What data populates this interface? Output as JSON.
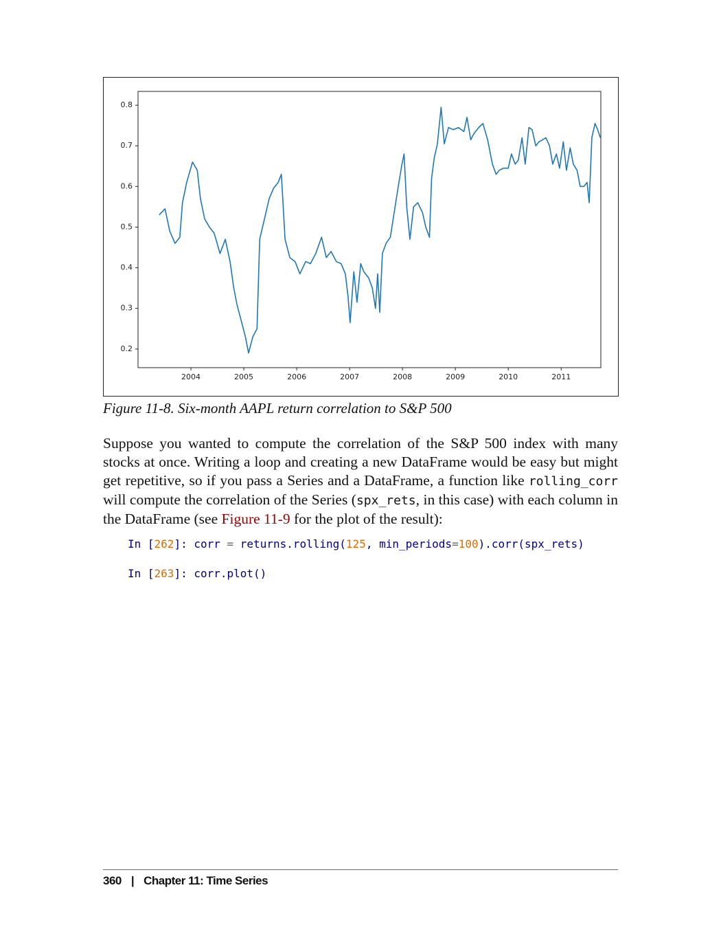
{
  "chart_data": {
    "type": "line",
    "color": "#1f77b4",
    "xlim": [
      2003.0,
      2011.75
    ],
    "ylim": [
      0.154,
      0.834
    ],
    "xticks": [
      2004,
      2005,
      2006,
      2007,
      2008,
      2009,
      2010,
      2011
    ],
    "yticks": [
      0.2,
      0.3,
      0.4,
      0.5,
      0.6,
      0.7,
      0.8
    ],
    "x": [
      2003.4,
      2003.51,
      2003.6,
      2003.7,
      2003.79,
      2003.84,
      2003.92,
      2004.03,
      2004.12,
      2004.18,
      2004.26,
      2004.35,
      2004.44,
      2004.55,
      2004.65,
      2004.74,
      2004.81,
      2004.87,
      2004.96,
      2005.03,
      2005.09,
      2005.17,
      2005.25,
      2005.3,
      2005.39,
      2005.48,
      2005.56,
      2005.65,
      2005.71,
      2005.78,
      2005.87,
      2005.97,
      2006.06,
      2006.17,
      2006.26,
      2006.36,
      2006.47,
      2006.56,
      2006.65,
      2006.75,
      2006.84,
      2006.92,
      2006.97,
      2007.01,
      2007.08,
      2007.14,
      2007.21,
      2007.27,
      2007.36,
      2007.43,
      2007.49,
      2007.53,
      2007.57,
      2007.62,
      2007.69,
      2007.77,
      2007.86,
      2007.92,
      2007.99,
      2008.03,
      2008.08,
      2008.14,
      2008.21,
      2008.29,
      2008.38,
      2008.44,
      2008.51,
      2008.55,
      2008.6,
      2008.66,
      2008.73,
      2008.79,
      2008.87,
      2008.96,
      2009.06,
      2009.16,
      2009.22,
      2009.29,
      2009.35,
      2009.44,
      2009.52,
      2009.61,
      2009.7,
      2009.77,
      2009.83,
      2009.91,
      2010.0,
      2010.06,
      2010.13,
      2010.19,
      2010.26,
      2010.32,
      2010.39,
      2010.45,
      2010.52,
      2010.58,
      2010.65,
      2010.71,
      2010.78,
      2010.84,
      2010.91,
      2010.97,
      2011.04,
      2011.1,
      2011.17,
      2011.23,
      2011.3,
      2011.36,
      2011.43,
      2011.49,
      2011.53,
      2011.58,
      2011.64,
      2011.69,
      2011.74
    ],
    "values": [
      0.53,
      0.545,
      0.49,
      0.46,
      0.475,
      0.56,
      0.61,
      0.66,
      0.64,
      0.57,
      0.52,
      0.5,
      0.485,
      0.435,
      0.47,
      0.415,
      0.35,
      0.31,
      0.265,
      0.23,
      0.19,
      0.23,
      0.25,
      0.47,
      0.52,
      0.57,
      0.595,
      0.61,
      0.63,
      0.47,
      0.425,
      0.415,
      0.385,
      0.415,
      0.41,
      0.435,
      0.475,
      0.425,
      0.44,
      0.415,
      0.41,
      0.385,
      0.33,
      0.265,
      0.39,
      0.315,
      0.41,
      0.39,
      0.375,
      0.35,
      0.3,
      0.385,
      0.29,
      0.435,
      0.46,
      0.475,
      0.55,
      0.6,
      0.655,
      0.68,
      0.55,
      0.47,
      0.55,
      0.56,
      0.535,
      0.5,
      0.475,
      0.62,
      0.67,
      0.705,
      0.795,
      0.705,
      0.745,
      0.74,
      0.745,
      0.735,
      0.77,
      0.715,
      0.73,
      0.745,
      0.755,
      0.715,
      0.655,
      0.63,
      0.64,
      0.645,
      0.645,
      0.68,
      0.655,
      0.665,
      0.72,
      0.655,
      0.745,
      0.74,
      0.7,
      0.71,
      0.715,
      0.72,
      0.7,
      0.655,
      0.68,
      0.645,
      0.71,
      0.64,
      0.695,
      0.655,
      0.64,
      0.6,
      0.6,
      0.61,
      0.56,
      0.72,
      0.755,
      0.74,
      0.72
    ]
  },
  "caption": "Figure 11-8. Six-month AAPL return correlation to S&P 500",
  "paragraph": [
    "Suppose you wanted to compute the correlation of the S&P 500 index with many stocks at once. Writing a loop and creating a new DataFrame would be easy but might get repetitive, so if you pass a Series and a DataFrame, a function like ",
    "rolling_corr",
    " will compute the correlation of the Series (",
    "spx_rets",
    ", in this case) with each column in the DataFrame (see ",
    "Figure 11-9",
    " for the plot of the result):"
  ],
  "code": [
    [
      "In [",
      "262",
      "]: ",
      "corr ",
      "=",
      " returns.rolling(",
      "125",
      ", ",
      "min_periods",
      "=",
      "100",
      ").corr(spx_rets)"
    ],
    [
      "In [",
      "263",
      "]: ",
      "corr.plot()"
    ]
  ],
  "footer": {
    "page": "360",
    "separator": "|",
    "chapter": "Chapter 11: Time Series"
  }
}
